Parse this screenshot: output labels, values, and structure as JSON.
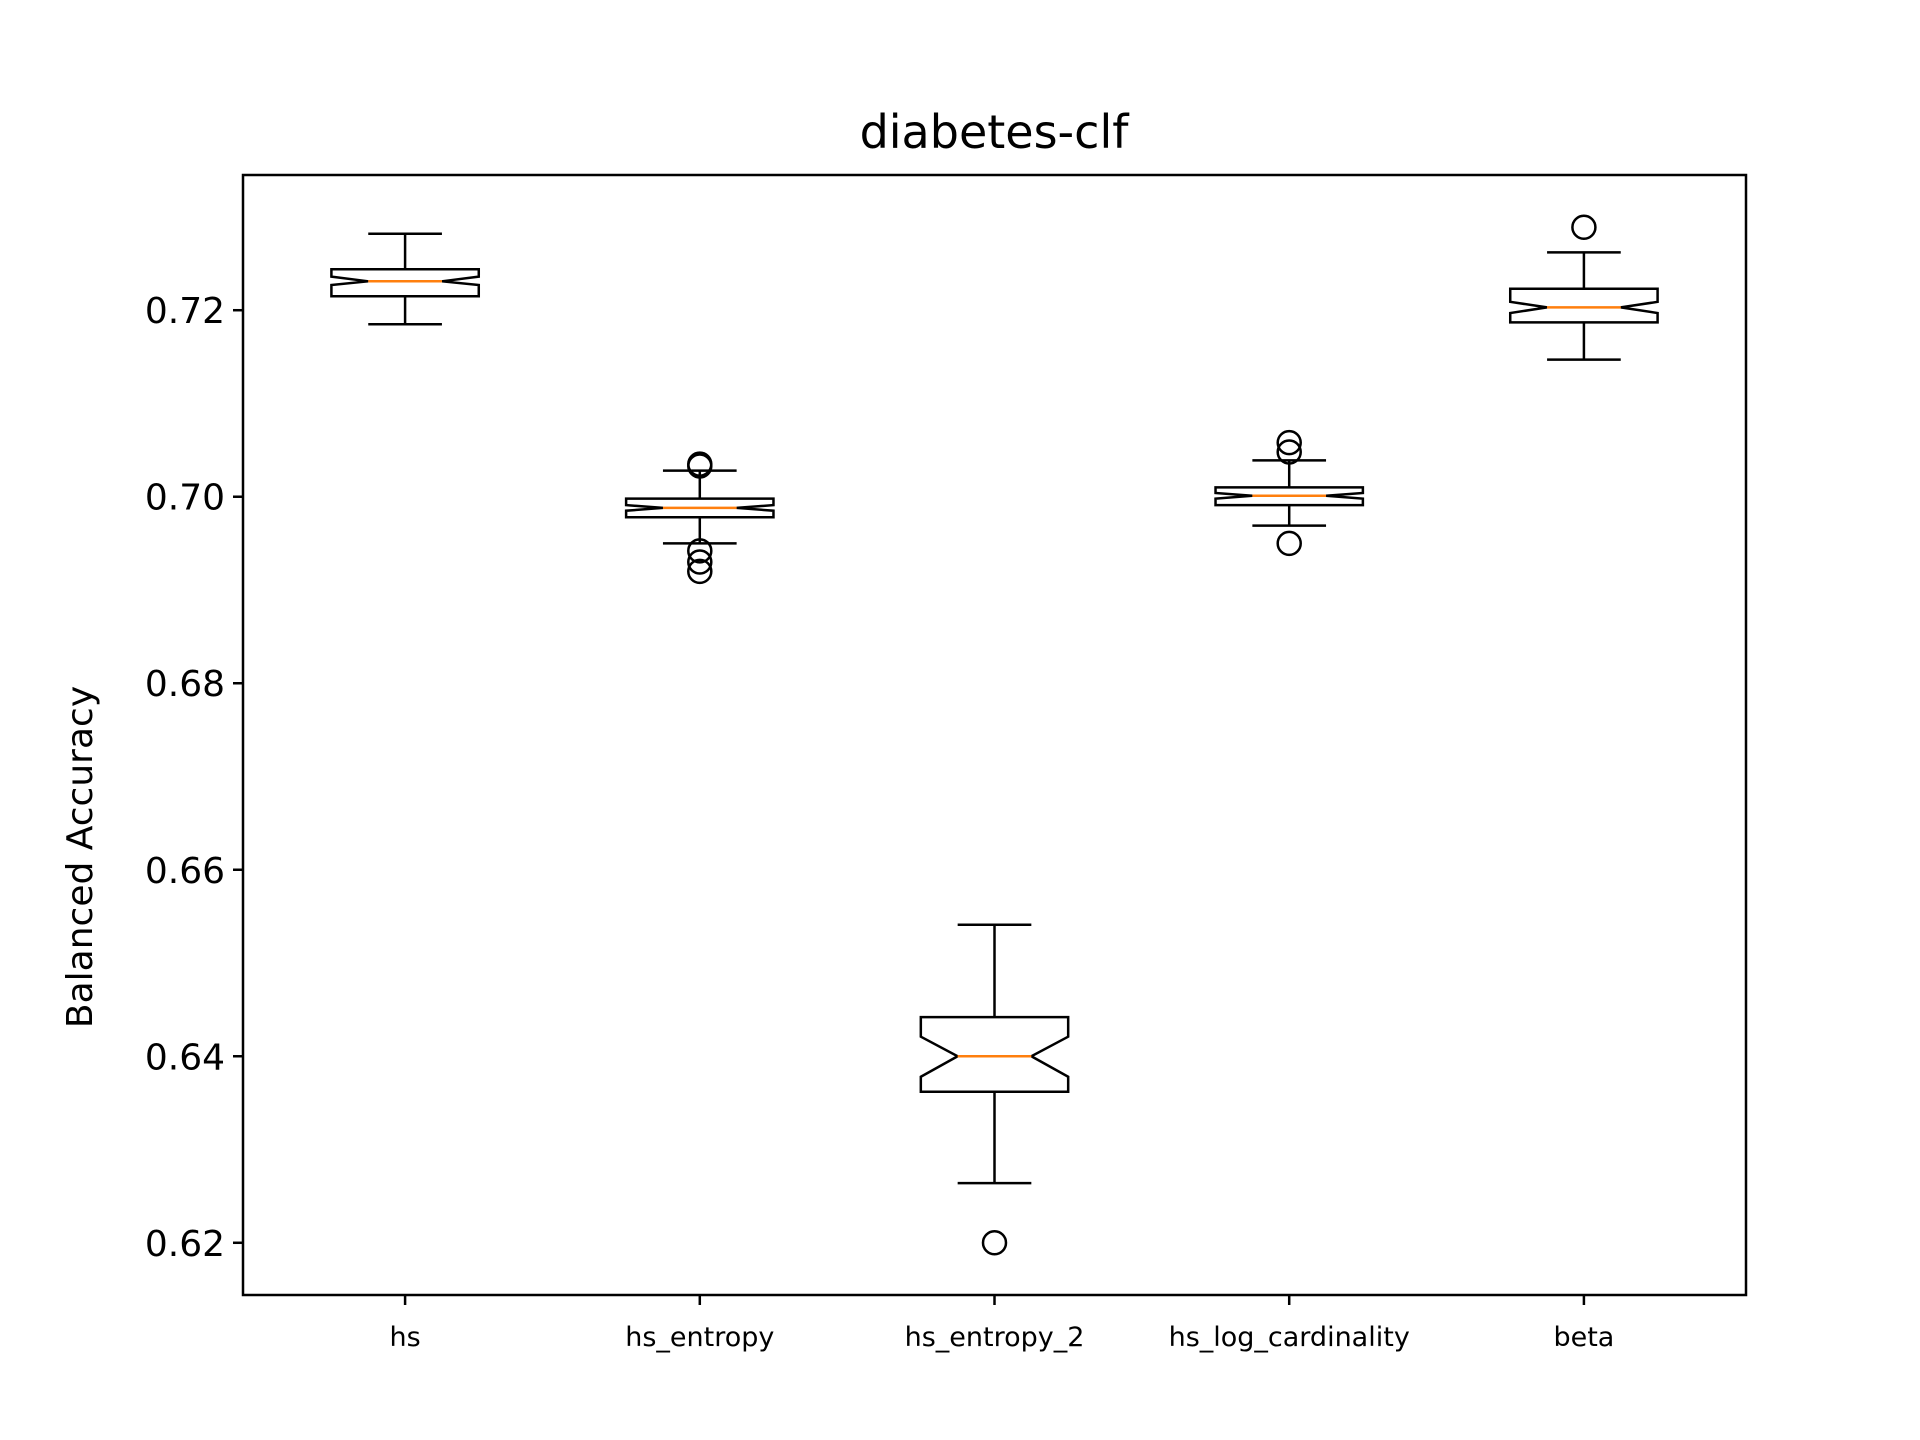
{
  "chart_data": {
    "type": "box",
    "title": "diabetes-clf",
    "xlabel": "",
    "ylabel": "Balanced Accuracy",
    "ylim": [
      0.6144,
      0.7345
    ],
    "yticks": [
      0.62,
      0.64,
      0.66,
      0.68,
      0.7,
      0.72
    ],
    "ytick_labels": [
      "0.62",
      "0.64",
      "0.66",
      "0.68",
      "0.70",
      "0.72"
    ],
    "notched": true,
    "grid": false,
    "colors": {
      "box": "#000000",
      "median": "#ff7f0e"
    },
    "categories": [
      "hs",
      "hs_entropy",
      "hs_entropy_2",
      "hs_log_cardinality",
      "beta"
    ],
    "boxes": [
      {
        "label": "hs",
        "whislo": 0.7185,
        "q1": 0.7215,
        "med": 0.7231,
        "q3": 0.7244,
        "whishi": 0.7282,
        "notch_lo": 0.7227,
        "notch_hi": 0.7236,
        "fliers": []
      },
      {
        "label": "hs_entropy",
        "whislo": 0.695,
        "q1": 0.6978,
        "med": 0.6988,
        "q3": 0.6998,
        "whishi": 0.7028,
        "notch_lo": 0.6985,
        "notch_hi": 0.6991,
        "fliers": [
          0.7035,
          0.7033,
          0.6942,
          0.693,
          0.692
        ]
      },
      {
        "label": "hs_entropy_2",
        "whislo": 0.6264,
        "q1": 0.6362,
        "med": 0.64,
        "q3": 0.6442,
        "whishi": 0.6541,
        "notch_lo": 0.6378,
        "notch_hi": 0.6421,
        "fliers": [
          0.62
        ]
      },
      {
        "label": "hs_log_cardinality",
        "whislo": 0.6969,
        "q1": 0.6991,
        "med": 0.7001,
        "q3": 0.701,
        "whishi": 0.7039,
        "notch_lo": 0.6998,
        "notch_hi": 0.7004,
        "fliers": [
          0.7058,
          0.7048,
          0.695
        ]
      },
      {
        "label": "beta",
        "whislo": 0.7147,
        "q1": 0.7187,
        "med": 0.7203,
        "q3": 0.7223,
        "whishi": 0.7262,
        "notch_lo": 0.7197,
        "notch_hi": 0.7209,
        "fliers": [
          0.7289
        ]
      }
    ]
  }
}
